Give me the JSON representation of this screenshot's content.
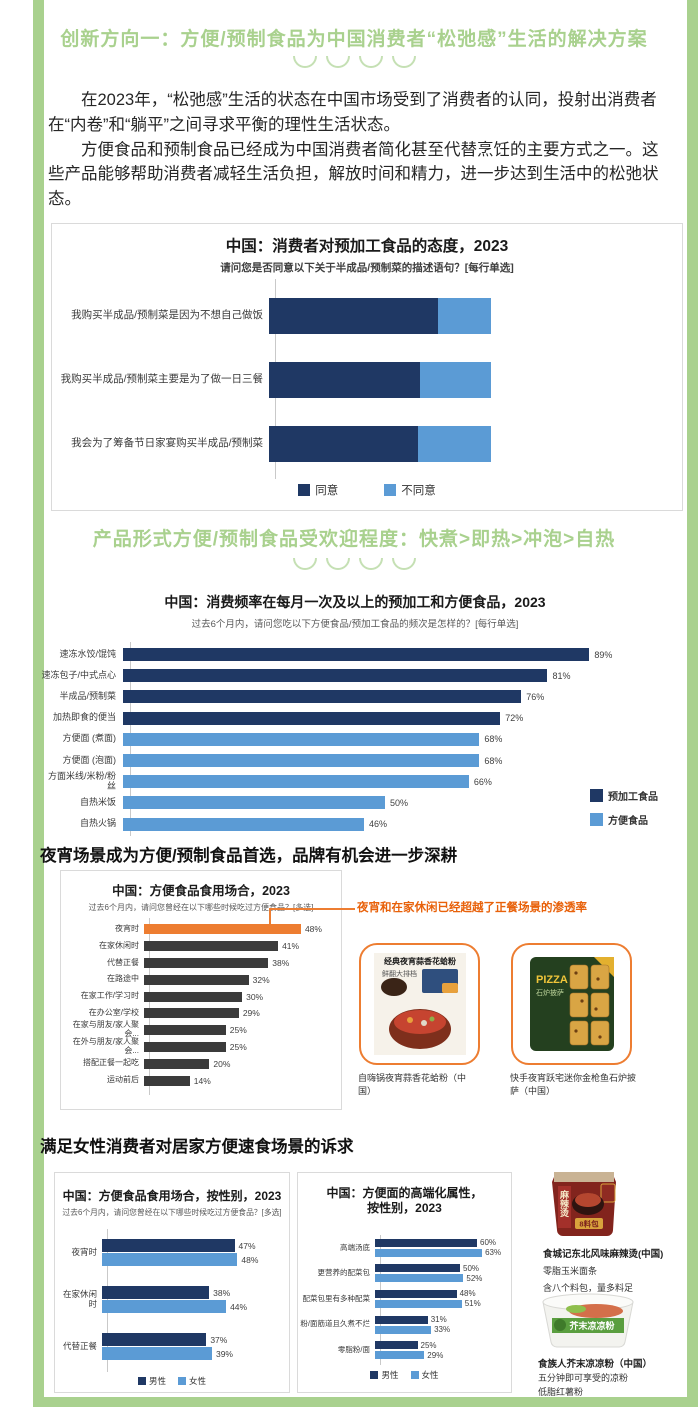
{
  "colors": {
    "green": "#A9D18E",
    "green_light": "#C5E0B4",
    "navy": "#1F3864",
    "blue": "#5B9BD5",
    "orange": "#ED7D31",
    "dark_gray": "#3B3B3B",
    "annotation_orange": "#E8610A",
    "border_gray": "#DADADA"
  },
  "banners": [
    {
      "title": "创新方向一：方便/预制食品为中国消费者“松弛感”生活的解决方案"
    },
    {
      "title": "产品形式方便/预制食品受欢迎程度：快煮>即热>冲泡>自热"
    }
  ],
  "intro": {
    "p1": "在2023年，“松弛感”生活的状态在中国市场受到了消费者的认同，投射出消费者在“内卷”和“躺平”之间寻求平衡的理性生活状态。",
    "p2": "方便食品和预制食品已经成为中国消费者简化甚至代替烹饪的主要方式之一。这些产品能够帮助消费者减轻生活负担，解放时间和精力，进一步达到生活中的松弛状态。"
  },
  "headings": {
    "night": "夜宵场景成为方便/预制食品首选，品牌有机会进一步深耕",
    "female": "满足女性消费者对居家方便速食场景的诉求",
    "annotation": "夜宵和在家休闲已经超越了正餐场景的渗透率"
  },
  "chart_data": [
    {
      "type": "bar",
      "orientation": "horizontal",
      "stacked": true,
      "title": "中国：消费者对预加工食品的态度，2023",
      "subtitle": "请问您是否同意以下关于半成品/预制菜的描述语句？[每行单选]",
      "categories": [
        "我购买半成品/预制菜是因为不想自己做饭",
        "我购买半成品/预制菜主要是为了做一日三餐",
        "我会为了筹备节日家宴购买半成品/预制菜"
      ],
      "series": [
        {
          "name": "同意",
          "color": "#1F3864",
          "values": [
            76,
            68,
            67
          ]
        },
        {
          "name": "不同意",
          "color": "#5B9BD5",
          "values": [
            24,
            32,
            33
          ]
        }
      ],
      "xlim": [
        0,
        100
      ],
      "data_labels": false,
      "legend_position": "bottom",
      "values_estimated": true
    },
    {
      "type": "bar",
      "orientation": "horizontal",
      "title": "中国：消费频率在每月一次及以上的预加工和方便食品，2023",
      "subtitle": "过去6个月内，请问您吃以下方便食品/预加工食品的频次是怎样的？[每行单选]",
      "categories": [
        "速冻水饺/馄饨",
        "速冻包子/中式点心",
        "半成品/预制菜",
        "加热即食的便当",
        "方便面 (煮面)",
        "方便面 (泡面)",
        "方面米线/米粉/粉丝",
        "自热米饭",
        "自热火锅"
      ],
      "values": [
        89,
        81,
        76,
        72,
        68,
        68,
        66,
        50,
        46
      ],
      "row_colors": [
        0,
        0,
        0,
        0,
        1,
        1,
        1,
        1,
        1
      ],
      "legend": [
        {
          "label": "预加工食品",
          "color": "#1F3864"
        },
        {
          "label": "方便食品",
          "color": "#5B9BD5"
        }
      ],
      "legend_position": "right",
      "data_labels": true
    },
    {
      "type": "bar",
      "orientation": "horizontal",
      "title": "中国：方便食品食用场合，2023",
      "subtitle": "过去6个月内，请问您曾经在以下哪些时候吃过方便食品？[多选]",
      "categories": [
        "夜宵时",
        "在家休闲时",
        "代替正餐",
        "在路途中",
        "在家工作/学习时",
        "在办公室/学校",
        "在家与朋友/家人聚会...",
        "在外与朋友/家人聚会...",
        "搭配正餐一起吃",
        "运动前后"
      ],
      "values": [
        48,
        41,
        38,
        32,
        30,
        29,
        25,
        25,
        20,
        14
      ],
      "highlight_index": 0,
      "highlight_color": "#ED7D31",
      "bar_color": "#3B3B3B",
      "data_labels": true
    },
    {
      "type": "bar",
      "orientation": "horizontal",
      "grouped": true,
      "title": "中国：方便食品食用场合，按性别，2023",
      "subtitle": "过去6个月内，请问您曾经在以下哪些时候吃过方便食品？[多选]",
      "categories": [
        "夜宵时",
        "在家休闲时",
        "代替正餐"
      ],
      "series": [
        {
          "name": "男性",
          "color": "#1F3864",
          "values": [
            47,
            38,
            37
          ]
        },
        {
          "name": "女性",
          "color": "#5B9BD5",
          "values": [
            48,
            44,
            39
          ]
        }
      ],
      "legend_position": "bottom",
      "data_labels": true
    },
    {
      "type": "bar",
      "orientation": "horizontal",
      "grouped": true,
      "title": "中国：方便面的高端化属性，按性别，2023",
      "title_line1": "中国：方便面的高端化属性，",
      "title_line2": "按性别，2023",
      "categories": [
        "高端汤底",
        "更营养的配菜包",
        "配菜包里有多种配菜",
        "粉/面筋道且久煮不烂",
        "零脂粉/面"
      ],
      "series": [
        {
          "name": "男性",
          "color": "#1F3864",
          "values": [
            60,
            50,
            48,
            31,
            25
          ]
        },
        {
          "name": "女性",
          "color": "#5B9BD5",
          "values": [
            63,
            52,
            51,
            33,
            29
          ]
        }
      ],
      "legend_position": "bottom",
      "data_labels": true
    }
  ],
  "products": {
    "night": [
      {
        "caption": "自嗨锅夜宵蒜香花蛤粉（中国）",
        "package_title": "经典夜宵蒜香花蛤粉",
        "package_subtitle": "鲜翻大排档"
      },
      {
        "caption": "快手夜宵跃宅迷你金枪鱼石炉披萨（中国）",
        "package_title": "PIZZA",
        "package_subtitle": "石炉披萨"
      }
    ],
    "home": [
      {
        "caption": "食城记东北风味麻辣烫(中国)",
        "lines": [
          "零脂玉米面条",
          "含八个料包，量多料足"
        ],
        "package_side": "麻辣烫",
        "package_badge": "8料包"
      },
      {
        "caption": "食族人芥末凉凉粉（中国）",
        "lines": [
          "五分钟即可享受的凉粉",
          "低脂红薯粉"
        ],
        "package_title": "芥末凉凉粉"
      }
    ]
  }
}
